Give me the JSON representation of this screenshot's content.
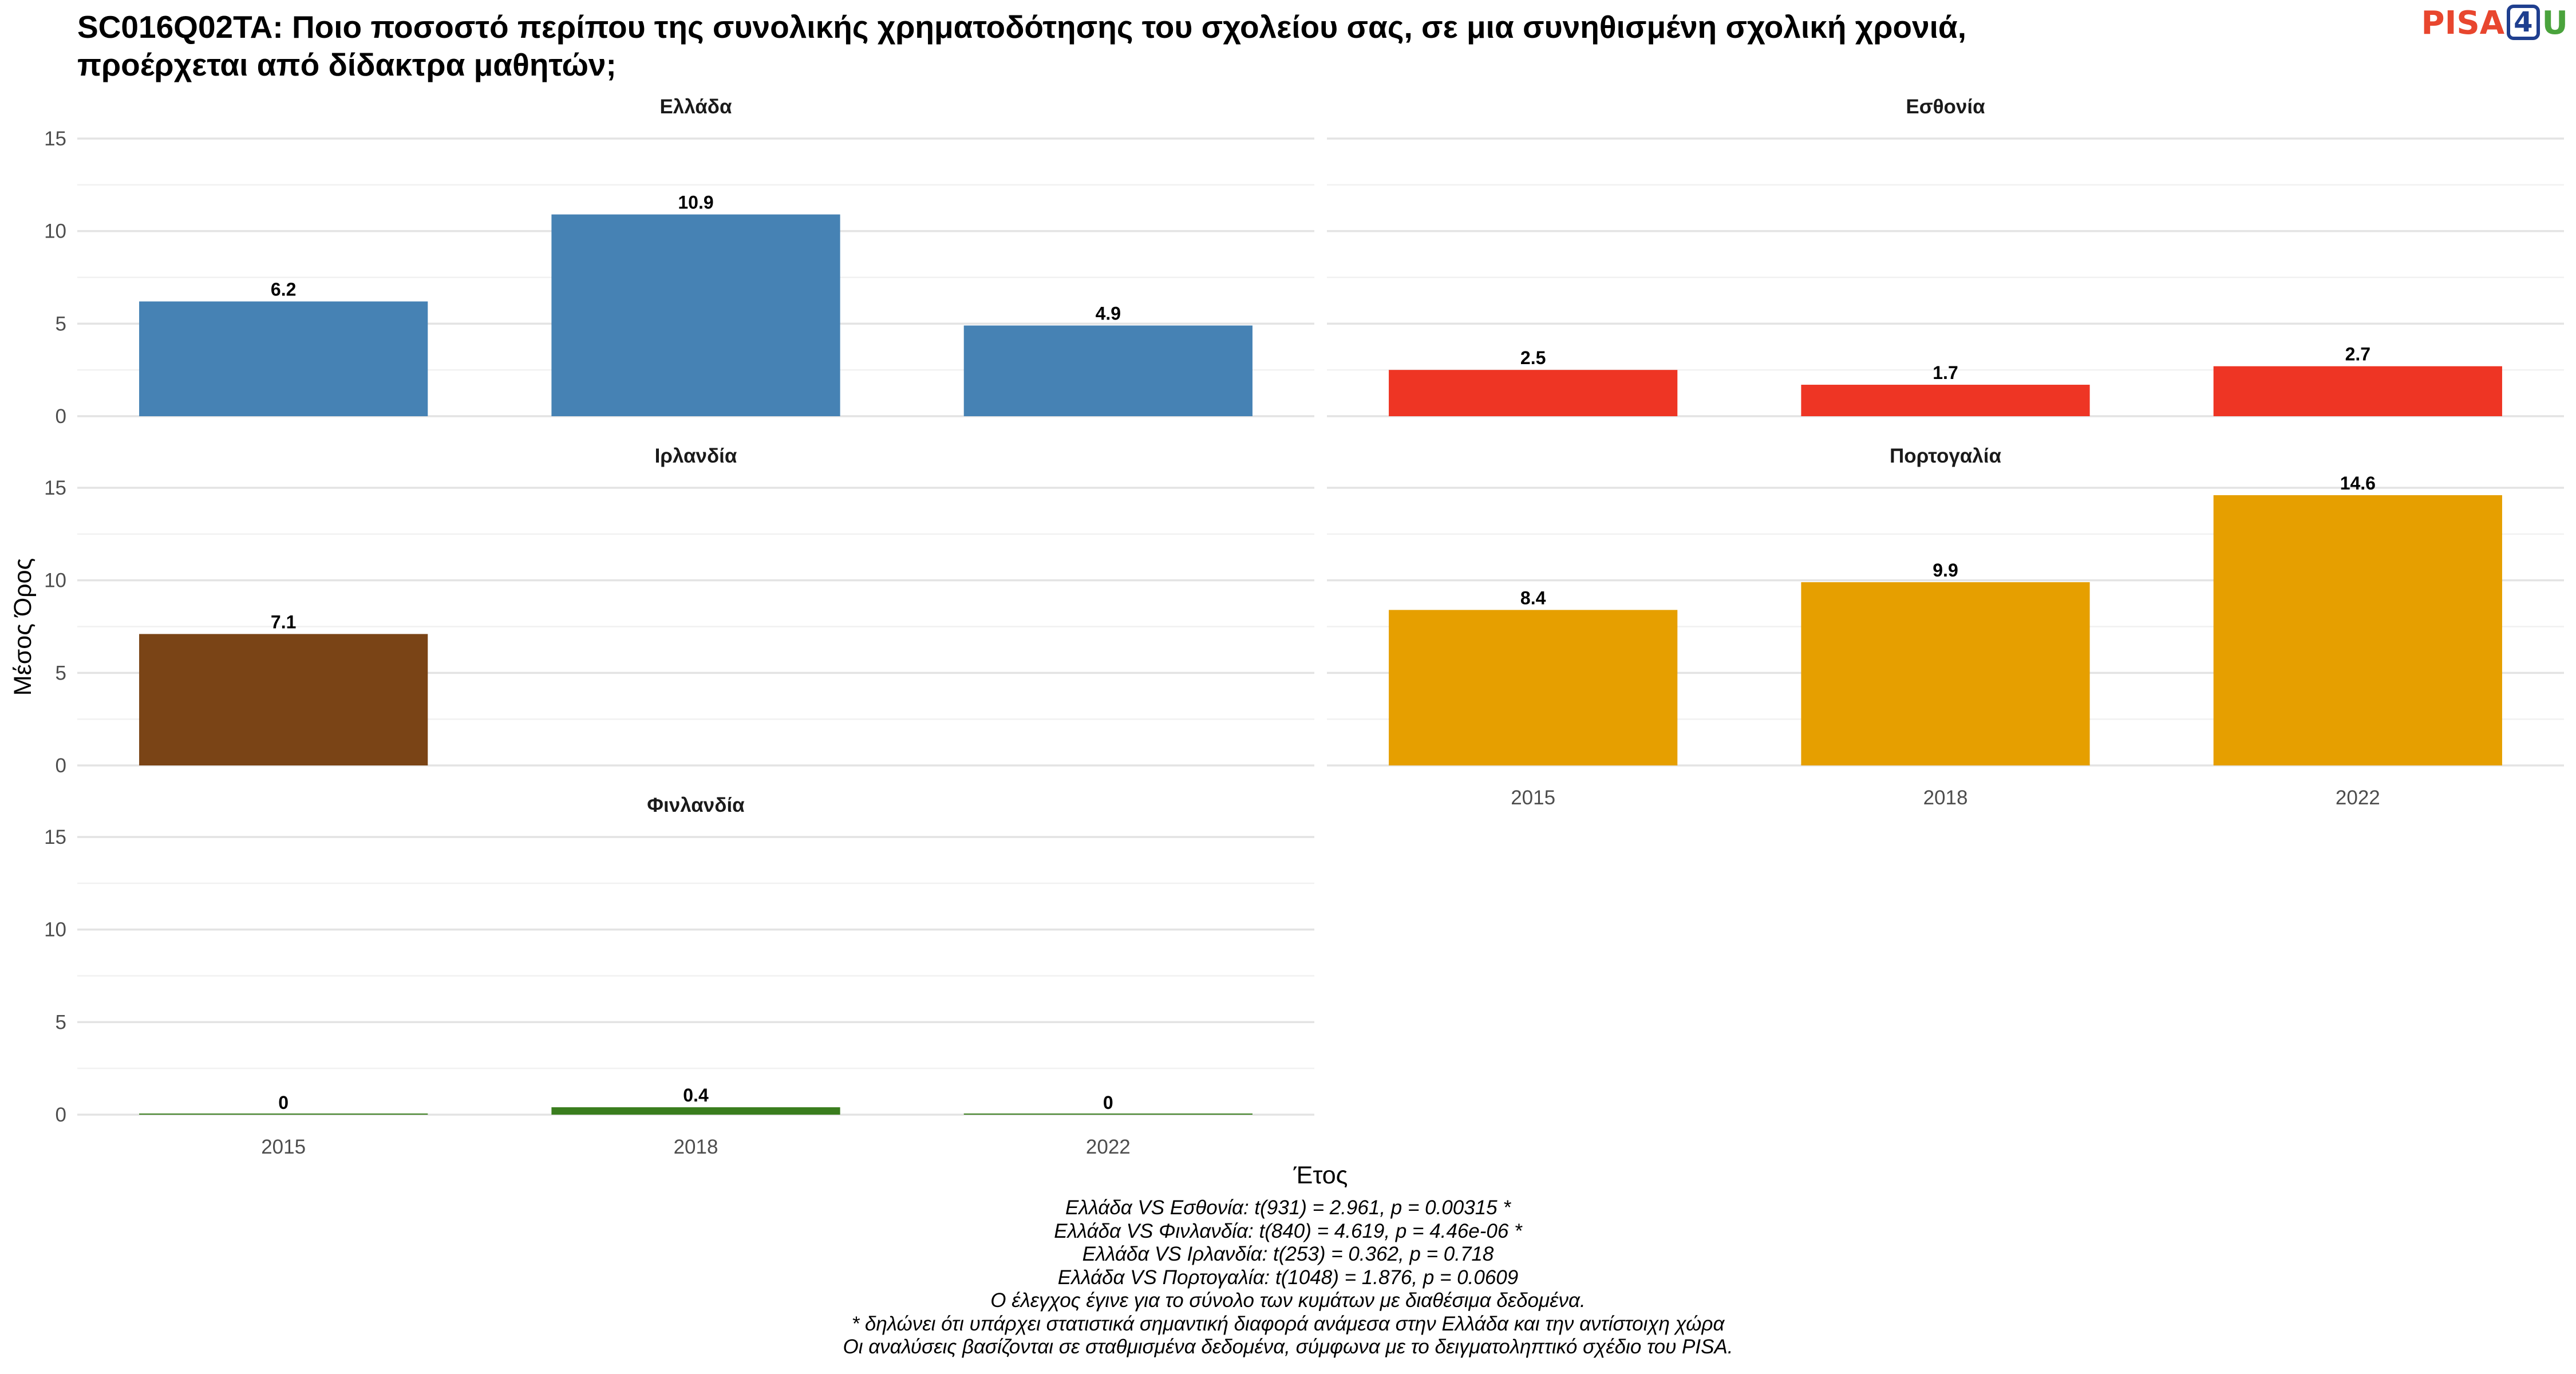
{
  "title": "SC016Q02TA: Ποιο ποσοστό περίπου της συνολικής χρηματοδότησης του σχολείου σας, σε μια συνηθισμένη σχολική χρονιά, προέρχεται από δίδακτρα μαθητών;",
  "logo": {
    "part1": "PISA",
    "part2": "4",
    "part3": "U"
  },
  "chart_data": {
    "type": "bar",
    "layout": "facet",
    "xlabel": "Έτος",
    "ylabel": "Μέσος Όρος",
    "ylim": [
      0,
      15
    ],
    "yticks": [
      0,
      5,
      10,
      15
    ],
    "categories": [
      "2015",
      "2018",
      "2022"
    ],
    "grid": true,
    "panels": [
      {
        "name": "Ελλάδα",
        "color": "#4682b4",
        "values": [
          6.2,
          10.9,
          4.9
        ],
        "labels": [
          "6.2",
          "10.9",
          "4.9"
        ]
      },
      {
        "name": "Εσθονία",
        "color": "#ee3524",
        "values": [
          2.5,
          1.7,
          2.7
        ],
        "labels": [
          "2.5",
          "1.7",
          "2.7"
        ]
      },
      {
        "name": "Ιρλανδία",
        "color": "#7a4416",
        "values": [
          7.1,
          null,
          null
        ],
        "labels": [
          "7.1",
          null,
          null
        ]
      },
      {
        "name": "Πορτογαλία",
        "color": "#e69f00",
        "values": [
          8.4,
          9.9,
          14.6
        ],
        "labels": [
          "8.4",
          "9.9",
          "14.6"
        ]
      },
      {
        "name": "Φινλανδία",
        "color": "#3a7d1e",
        "values": [
          0,
          0.4,
          0
        ],
        "labels": [
          "0",
          "0.4",
          "0"
        ]
      }
    ]
  },
  "footnotes": [
    "Ελλάδα VS Εσθονία: t(931) = 2.961, p = 0.00315 *",
    "Ελλάδα VS Φινλανδία: t(840) = 4.619, p = 4.46e-06 *",
    "Ελλάδα VS Ιρλανδία: t(253) = 0.362, p = 0.718",
    "Ελλάδα VS Πορτογαλία: t(1048) = 1.876, p = 0.0609",
    "Ο έλεγχος έγινε για το σύνολο των κυμάτων με διαθέσιμα δεδομένα.",
    "* δηλώνει ότι υπάρχει στατιστικά σημαντική διαφορά ανάμεσα στην Ελλάδα και την αντίστοιχη χώρα",
    "Οι αναλύσεις βασίζονται σε σταθμισμένα δεδομένα, σύμφωνα με το δειγματοληπτικό σχέδιο του PISA."
  ]
}
